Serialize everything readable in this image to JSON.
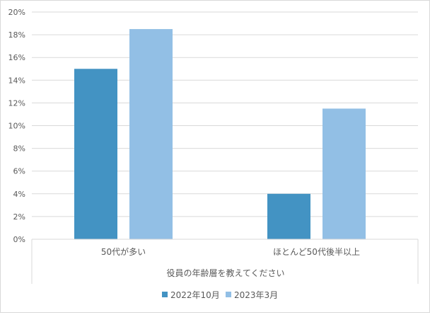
{
  "chart_data": {
    "type": "bar",
    "categories": [
      "50代が多い",
      "ほとんど50代後半以上"
    ],
    "series": [
      {
        "name": "2022年10月",
        "values": [
          15.0,
          4.0
        ],
        "color": "#4393c3"
      },
      {
        "name": "2023年3月",
        "values": [
          18.5,
          11.5
        ],
        "color": "#92bfe5"
      }
    ],
    "title": "",
    "xlabel": "役員の年齢層を教えてください",
    "ylabel": "",
    "ylim": [
      0,
      20
    ],
    "y_ticks": [
      0,
      2,
      4,
      6,
      8,
      10,
      12,
      14,
      16,
      18,
      20
    ],
    "y_tick_labels": [
      "0%",
      "2%",
      "4%",
      "6%",
      "8%",
      "10%",
      "12%",
      "14%",
      "16%",
      "18%",
      "20%"
    ],
    "grid": true,
    "legend_position": "bottom"
  }
}
